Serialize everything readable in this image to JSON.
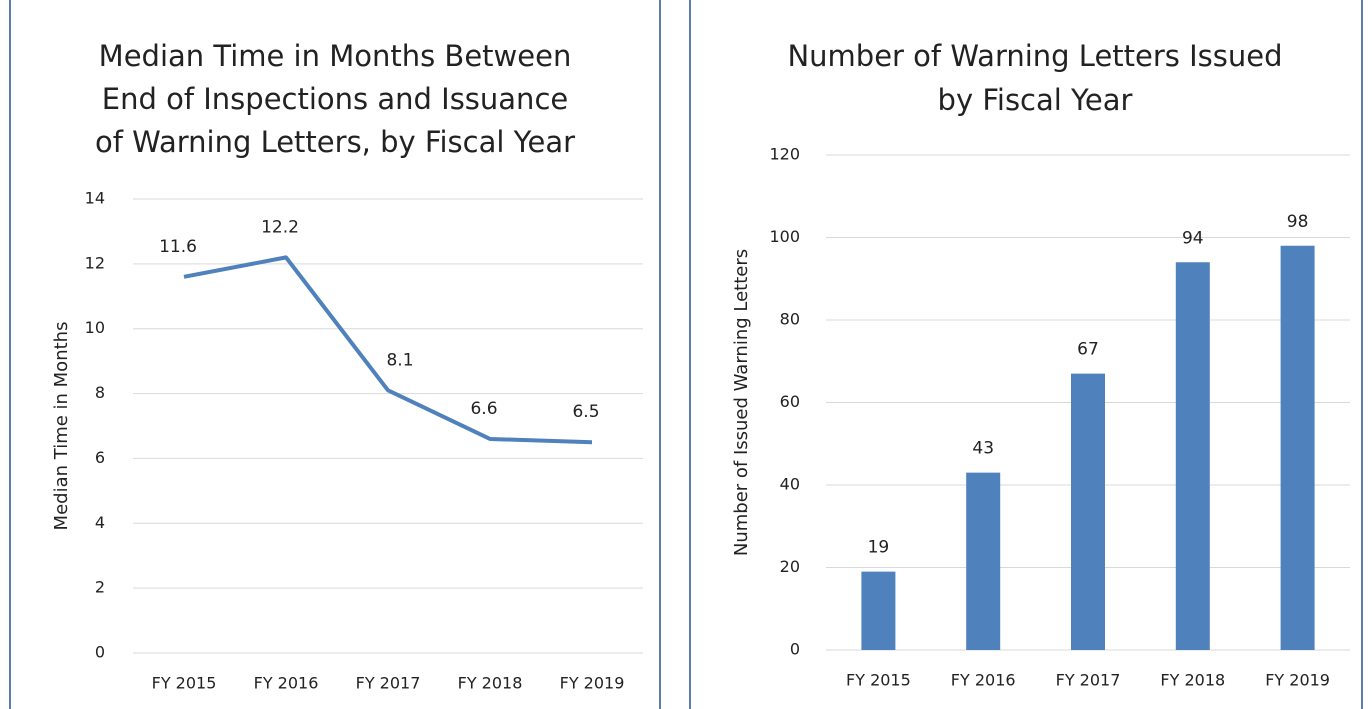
{
  "chart_data": [
    {
      "type": "line",
      "title": [
        "Median Time in Months Between",
        "End of Inspections and Issuance",
        "of Warning Letters, by Fiscal Year"
      ],
      "y_label": "Median Time in Months",
      "categories": [
        "FY 2015",
        "FY 2016",
        "FY 2017",
        "FY 2018",
        "FY 2019"
      ],
      "values": [
        11.6,
        12.2,
        8.1,
        6.6,
        6.5
      ],
      "color": "#4f81bd",
      "ylim": [
        0,
        14
      ],
      "yticks": [
        0,
        2,
        4,
        6,
        8,
        10,
        12,
        14
      ],
      "grid": true
    },
    {
      "type": "bar",
      "title": [
        "Number of Warning Letters Issued",
        "by Fiscal Year"
      ],
      "y_label": "Number of Issued Warning Letters",
      "categories": [
        "FY 2015",
        "FY 2016",
        "FY 2017",
        "FY 2018",
        "FY 2019"
      ],
      "values": [
        19,
        43,
        67,
        94,
        98
      ],
      "color": "#4f81bd",
      "ylim": [
        0,
        120
      ],
      "yticks": [
        0,
        20,
        40,
        60,
        80,
        100,
        120
      ],
      "grid": true
    }
  ]
}
